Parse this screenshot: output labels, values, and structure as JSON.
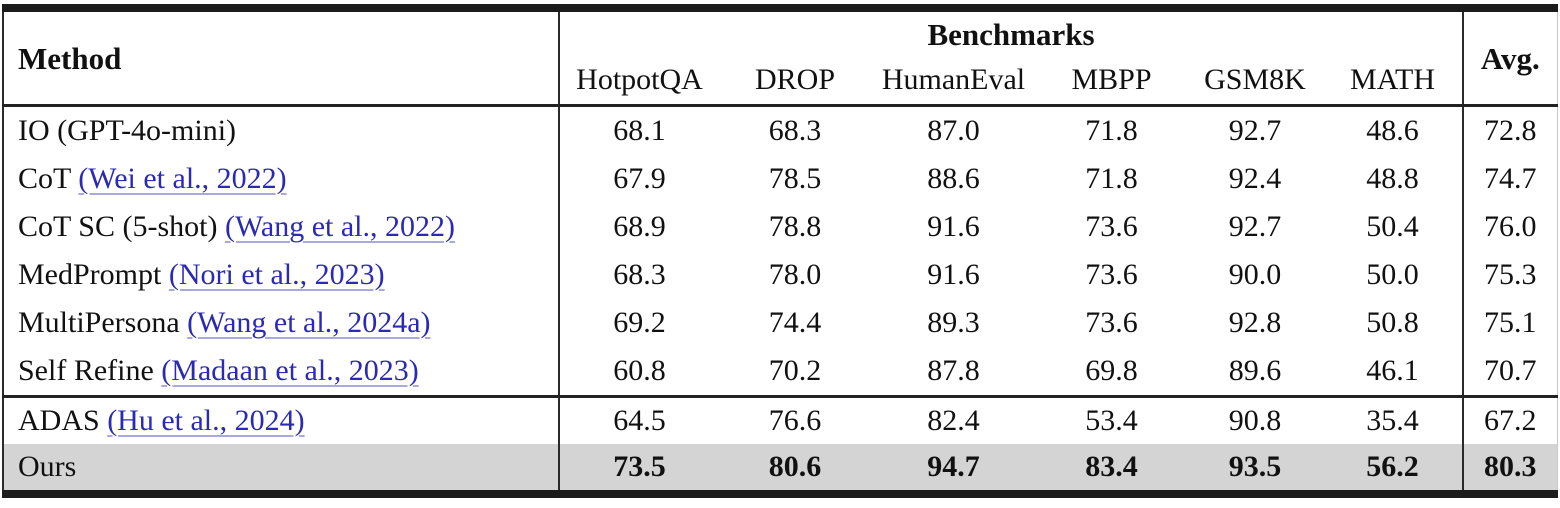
{
  "accent_colors": {
    "citation_link": "#2a2ab2",
    "citation_underline": "#a9a9e0",
    "highlight_row_background": "#d4d4d4",
    "rule_color": "#1b1b1b"
  },
  "table": {
    "header": {
      "method_label": "Method",
      "benchmarks_label": "Benchmarks",
      "avg_label": "Avg.",
      "columns": [
        "HotpotQA",
        "DROP",
        "HumanEval",
        "MBPP",
        "GSM8K",
        "MATH"
      ]
    },
    "rows": [
      {
        "method": "IO (GPT-4o-mini)",
        "citation": "",
        "values": [
          "68.1",
          "68.3",
          "87.0",
          "71.8",
          "92.7",
          "48.6"
        ],
        "avg": "72.8",
        "bold_values": false,
        "highlight": false,
        "rule_above": false
      },
      {
        "method": "CoT",
        "citation": "(Wei et al., 2022)",
        "values": [
          "67.9",
          "78.5",
          "88.6",
          "71.8",
          "92.4",
          "48.8"
        ],
        "avg": "74.7",
        "bold_values": false,
        "highlight": false,
        "rule_above": false
      },
      {
        "method": "CoT SC (5-shot)",
        "citation": "(Wang et al., 2022)",
        "values": [
          "68.9",
          "78.8",
          "91.6",
          "73.6",
          "92.7",
          "50.4"
        ],
        "avg": "76.0",
        "bold_values": false,
        "highlight": false,
        "rule_above": false
      },
      {
        "method": "MedPrompt",
        "citation": "(Nori et al., 2023)",
        "values": [
          "68.3",
          "78.0",
          "91.6",
          "73.6",
          "90.0",
          "50.0"
        ],
        "avg": "75.3",
        "bold_values": false,
        "highlight": false,
        "rule_above": false
      },
      {
        "method": "MultiPersona",
        "citation": "(Wang et al., 2024a)",
        "values": [
          "69.2",
          "74.4",
          "89.3",
          "73.6",
          "92.8",
          "50.8"
        ],
        "avg": "75.1",
        "bold_values": false,
        "highlight": false,
        "rule_above": false
      },
      {
        "method": "Self Refine",
        "citation": "(Madaan et al., 2023)",
        "values": [
          "60.8",
          "70.2",
          "87.8",
          "69.8",
          "89.6",
          "46.1"
        ],
        "avg": "70.7",
        "bold_values": false,
        "highlight": false,
        "rule_above": false
      },
      {
        "method": "ADAS",
        "citation": "(Hu et al., 2024)",
        "values": [
          "64.5",
          "76.6",
          "82.4",
          "53.4",
          "90.8",
          "35.4"
        ],
        "avg": "67.2",
        "bold_values": false,
        "highlight": false,
        "rule_above": true
      },
      {
        "method": "Ours",
        "citation": "",
        "values": [
          "73.5",
          "80.6",
          "94.7",
          "83.4",
          "93.5",
          "56.2"
        ],
        "avg": "80.3",
        "bold_values": true,
        "highlight": true,
        "rule_above": false
      }
    ]
  },
  "chart_data": {
    "type": "table",
    "title": "Benchmarks",
    "categories": [
      "HotpotQA",
      "DROP",
      "HumanEval",
      "MBPP",
      "GSM8K",
      "MATH",
      "Avg."
    ],
    "series": [
      {
        "name": "IO (GPT-4o-mini)",
        "values": [
          68.1,
          68.3,
          87.0,
          71.8,
          92.7,
          48.6,
          72.8
        ]
      },
      {
        "name": "CoT (Wei et al., 2022)",
        "values": [
          67.9,
          78.5,
          88.6,
          71.8,
          92.4,
          48.8,
          74.7
        ]
      },
      {
        "name": "CoT SC (5-shot) (Wang et al., 2022)",
        "values": [
          68.9,
          78.8,
          91.6,
          73.6,
          92.7,
          50.4,
          76.0
        ]
      },
      {
        "name": "MedPrompt (Nori et al., 2023)",
        "values": [
          68.3,
          78.0,
          91.6,
          73.6,
          90.0,
          50.0,
          75.3
        ]
      },
      {
        "name": "MultiPersona (Wang et al., 2024a)",
        "values": [
          69.2,
          74.4,
          89.3,
          73.6,
          92.8,
          50.8,
          75.1
        ]
      },
      {
        "name": "Self Refine (Madaan et al., 2023)",
        "values": [
          60.8,
          70.2,
          87.8,
          69.8,
          89.6,
          46.1,
          70.7
        ]
      },
      {
        "name": "ADAS (Hu et al., 2024)",
        "values": [
          64.5,
          76.6,
          82.4,
          53.4,
          90.8,
          35.4,
          67.2
        ]
      },
      {
        "name": "Ours",
        "values": [
          73.5,
          80.6,
          94.7,
          83.4,
          93.5,
          56.2,
          80.3
        ]
      }
    ]
  }
}
